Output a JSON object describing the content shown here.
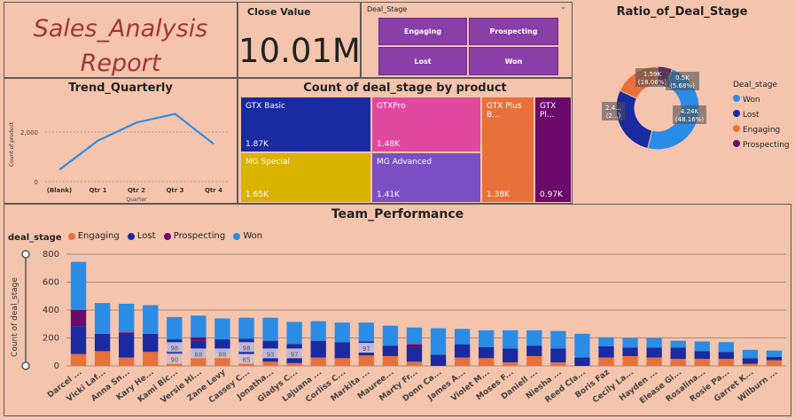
{
  "report": {
    "title": "Sales_Analysis Report"
  },
  "kpi": {
    "label": "Close Value",
    "value": "10.01M"
  },
  "slicer": {
    "label": "Deal_Stage",
    "options": [
      "Engaging",
      "Prospecting",
      "Lost",
      "Won"
    ],
    "color": "#8a3ea7"
  },
  "colors": {
    "engaging": "#e8703a",
    "lost": "#1a2aa0",
    "prospecting": "#6b0a6b",
    "won": "#2b8ce6",
    "background": "#f4c4ad"
  },
  "trend": {
    "title": "Trend_Quarterly",
    "chart_data": {
      "type": "line",
      "categories": [
        "(Blank)",
        "Qtr 1",
        "Qtr 2",
        "Qtr 3",
        "Qtr 4"
      ],
      "values": [
        480,
        1650,
        2380,
        2730,
        1520
      ],
      "ylabel": "Count of product",
      "xlabel": "Quarter",
      "yticks": [
        "0",
        "2,000"
      ],
      "ylim": [
        0,
        3000
      ],
      "color": "#2b8ce6"
    }
  },
  "treemap": {
    "title": "Count of deal_stage by product",
    "chart_data": {
      "type": "treemap",
      "items": [
        {
          "name": "GTX Basic",
          "label": "1.87K",
          "value": 1866,
          "color": "#1a2aa0"
        },
        {
          "name": "GTXPro",
          "label": "1.48K",
          "value": 1480,
          "color": "#e0489e"
        },
        {
          "name": "MG Special",
          "label": "1.65K",
          "value": 1651,
          "color": "#d9b300"
        },
        {
          "name": "MG Advanced",
          "label": "1.41K",
          "value": 1412,
          "color": "#7a4fc4"
        },
        {
          "name": "GTX Plus B...",
          "label": "1.38K",
          "value": 1383,
          "color": "#e8703a"
        },
        {
          "name": "GTX Pl...",
          "label": "0.97K",
          "value": 968,
          "color": "#6b0a6b"
        }
      ]
    }
  },
  "donut": {
    "title": "Ratio_of_Deal_Stage",
    "legend_title": "Deal_stage",
    "chart_data": {
      "type": "pie",
      "slices": [
        {
          "name": "Won",
          "value": 4240,
          "label": "4.24K",
          "pct": "(48.16%)"
        },
        {
          "name": "Lost",
          "value": 2470,
          "label": "2.4...",
          "pct": "(2...)"
        },
        {
          "name": "Engaging",
          "value": 1590,
          "label": "1.59K",
          "pct": "(18.06%)"
        },
        {
          "name": "Prospecting",
          "value": 500,
          "label": "0.5K",
          "pct": "(5.68%)"
        }
      ]
    }
  },
  "team": {
    "title": "Team_Performance",
    "legend_title": "deal_stage",
    "chart_data": {
      "type": "bar",
      "stacked": true,
      "ylabel": "Count of deal_stage",
      "ylim": [
        0,
        800
      ],
      "yticks": [
        "0",
        "200",
        "400",
        "600",
        "800"
      ],
      "categories": [
        "Darcel ...",
        "Vicki Laf...",
        "Anna Sn...",
        "Kary He...",
        "Kami Bic...",
        "Versie Hi...",
        "Zane Levy",
        "Cassey C...",
        "Jonatha...",
        "Gladys C...",
        "Lajuana ...",
        "Corliss C...",
        "Markita ...",
        "Mauree...",
        "Marty Fr...",
        "Donn Ca...",
        "James A...",
        "Violet M...",
        "Moses F...",
        "Daniell ...",
        "Niesha ...",
        "Reed Cla...",
        "Boris Faz",
        "Cecily La...",
        "Hayden ...",
        "Elease Gi...",
        "Rosalina...",
        "Rosie Pa...",
        "Garret K...",
        "Wilburn ..."
      ],
      "series": [
        {
          "name": "Engaging",
          "values": [
            85,
            105,
            60,
            100,
            90,
            60,
            88,
            85,
            30,
            20,
            60,
            55,
            75,
            70,
            30,
            0,
            60,
            55,
            25,
            70,
            25,
            0,
            60,
            70,
            60,
            50,
            50,
            50,
            15,
            40
          ]
        },
        {
          "name": "Lost",
          "values": [
            200,
            125,
            165,
            130,
            100,
            120,
            102,
            110,
            145,
            137,
            120,
            115,
            100,
            75,
            100,
            80,
            95,
            80,
            100,
            75,
            100,
            60,
            80,
            60,
            70,
            80,
            55,
            50,
            40,
            25
          ]
        },
        {
          "name": "Prospecting",
          "values": [
            115,
            0,
            15,
            0,
            0,
            25,
            0,
            0,
            5,
            0,
            0,
            0,
            0,
            0,
            25,
            0,
            0,
            0,
            0,
            0,
            0,
            0,
            0,
            0,
            0,
            0,
            0,
            0,
            0,
            0
          ]
        },
        {
          "name": "Won",
          "values": [
            345,
            220,
            205,
            205,
            160,
            155,
            150,
            150,
            165,
            158,
            140,
            140,
            135,
            143,
            120,
            190,
            110,
            120,
            130,
            110,
            125,
            170,
            65,
            70,
            70,
            50,
            70,
            70,
            60,
            45
          ]
        }
      ],
      "data_labels": [
        {
          "index": 4,
          "values": [
            "98",
            "90"
          ]
        },
        {
          "index": 5,
          "values": [
            "88"
          ]
        },
        {
          "index": 6,
          "values": [
            "88"
          ]
        },
        {
          "index": 7,
          "values": [
            "98",
            "85"
          ]
        },
        {
          "index": 8,
          "values": [
            "93"
          ]
        },
        {
          "index": 9,
          "values": [
            "97"
          ]
        },
        {
          "index": 12,
          "values": [
            "97"
          ]
        }
      ]
    }
  }
}
